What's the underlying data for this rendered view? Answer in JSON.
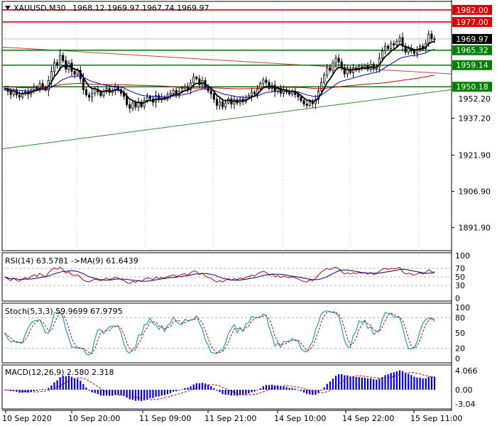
{
  "chart_data": {
    "type": "candlestick",
    "symbol_header": "XAUUSD,M30",
    "ohlc_text": "1968.12 1969.97 1967.74 1969.97",
    "price_ticks": [
      1937.2,
      1921.9,
      1906.9,
      1891.9
    ],
    "price_ticks_text": [
      "1937.20",
      "1921.90",
      "1906.90",
      "1891.90"
    ],
    "partial_tick": "1952.20",
    "ylim": [
      1882.4,
      1985.5
    ],
    "x_labels": [
      "10 Sep 2020",
      "10 Sep 20:00",
      "11 Sep 09:00",
      "11 Sep 21:00",
      "14 Sep 10:00",
      "14 Sep 22:00",
      "15 Sep 11:00"
    ],
    "current_price": {
      "value": 1969.97,
      "label": "1969.97",
      "color": "#000000"
    },
    "resistance_levels": [
      {
        "value": 1982.0,
        "label": "1982.00",
        "color": "#e00000"
      },
      {
        "value": 1977.0,
        "label": "1977.00",
        "color": "#e00000"
      }
    ],
    "support_levels": [
      {
        "value": 1965.32,
        "label": "1965.32",
        "color": "#008000"
      },
      {
        "value": 1959.14,
        "label": "1959.14",
        "color": "#008000"
      },
      {
        "value": 1950.18,
        "label": "1950.18",
        "color": "#008000"
      }
    ],
    "trendlines": [
      {
        "color": "#c04040",
        "points": [
          [
            0,
            1966.6
          ],
          [
            1,
            1955.5
          ]
        ]
      },
      {
        "color": "#2e8b2e",
        "points": [
          [
            0,
            1924.5
          ],
          [
            1,
            1949.0
          ]
        ]
      }
    ],
    "closes": [
      1949.5,
      1948.2,
      1947.0,
      1948.5,
      1946.8,
      1945.9,
      1947.3,
      1948.1,
      1947.2,
      1948.9,
      1950.2,
      1949.1,
      1951.5,
      1950.0,
      1948.8,
      1952.8,
      1956.5,
      1960.2,
      1959.0,
      1963.2,
      1961.0,
      1957.4,
      1960.0,
      1956.6,
      1955.3,
      1957.0,
      1953.5,
      1949.0,
      1946.8,
      1945.9,
      1947.5,
      1949.2,
      1948.0,
      1946.5,
      1948.2,
      1949.5,
      1947.8,
      1948.6,
      1950.1,
      1949.0,
      1947.5,
      1946.2,
      1942.8,
      1941.3,
      1943.5,
      1941.8,
      1943.9,
      1942.0,
      1944.5,
      1946.0,
      1945.2,
      1943.8,
      1946.5,
      1944.8,
      1946.0,
      1945.0,
      1946.8,
      1947.5,
      1948.7,
      1947.0,
      1948.3,
      1949.6,
      1950.2,
      1949.0,
      1951.8,
      1954.2,
      1953.5,
      1951.0,
      1952.8,
      1950.0,
      1948.5,
      1947.3,
      1945.0,
      1942.5,
      1944.0,
      1941.8,
      1943.5,
      1945.2,
      1943.0,
      1944.8,
      1943.5,
      1945.0,
      1944.0,
      1945.8,
      1946.5,
      1948.0,
      1947.2,
      1949.3,
      1951.5,
      1953.0,
      1952.0,
      1949.5,
      1950.8,
      1948.3,
      1949.5,
      1947.5,
      1949.0,
      1948.0,
      1947.2,
      1948.5,
      1947.0,
      1946.0,
      1944.5,
      1943.0,
      1942.5,
      1944.0,
      1943.2,
      1945.0,
      1948.5,
      1952.0,
      1955.0,
      1958.0,
      1957.0,
      1960.0,
      1962.0,
      1960.5,
      1958.0,
      1955.5,
      1957.5,
      1956.0,
      1958.0,
      1957.2,
      1958.5,
      1958.0,
      1959.0,
      1957.5,
      1959.5,
      1957.8,
      1958.5,
      1962.0,
      1965.0,
      1967.0,
      1966.0,
      1968.0,
      1967.5,
      1969.0,
      1970.5,
      1967.0,
      1964.5,
      1966.0,
      1965.0,
      1964.0,
      1965.5,
      1967.0,
      1966.0,
      1968.0,
      1972.0,
      1970.0,
      1969.97
    ],
    "ma_fast": {
      "color": "#000000"
    },
    "ma_slow": {
      "color": "#0000c8"
    },
    "ma_long": {
      "color": "#c00000"
    },
    "rsi": {
      "label": "RSI(14) 63.5781  ->MA(9) 61.6439",
      "levels": [
        70,
        50,
        30
      ],
      "axis_ticks": [
        100,
        70,
        50,
        30,
        0
      ],
      "axis_ticks_text": [
        "100",
        "70",
        "50",
        "30",
        "0"
      ],
      "line_color": "#c00000",
      "ma_color": "#000080"
    },
    "stochastic": {
      "label": "Stoch(5,3,3) 59.9699 67.9795",
      "levels": [
        80,
        20
      ],
      "axis_ticks": [
        100,
        80,
        50,
        20,
        0
      ],
      "axis_ticks_text": [
        "100",
        "80",
        "50",
        "20",
        "0"
      ],
      "main_color": "#20a0b0",
      "signal_color": "#c00000"
    },
    "macd": {
      "label": "MACD(12,26,9) 2.580 2.318",
      "axis_ticks": [
        4.066,
        0.0,
        -3.04
      ],
      "axis_ticks_text": [
        "4.066",
        "0.00",
        "-3.04"
      ],
      "hist_color": "#0000e0",
      "signal_color": "#c00000",
      "ylim": [
        -3.8,
        5.0
      ]
    }
  }
}
